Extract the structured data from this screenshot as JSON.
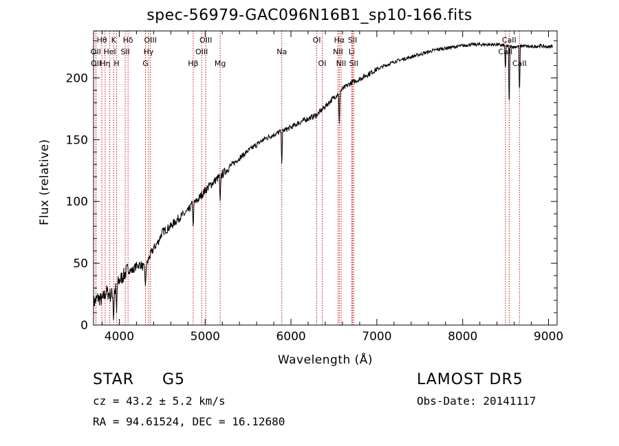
{
  "chart_data": {
    "type": "line",
    "title": "spec-56979-GAC096N16B1_sp10-166.fits",
    "xlabel": "Wavelength (Å)",
    "ylabel": "Flux (relative)",
    "xlim": [
      3700,
      9100
    ],
    "ylim": [
      0,
      238
    ],
    "x_ticks": [
      4000,
      5000,
      6000,
      7000,
      8000,
      9000
    ],
    "y_ticks": [
      0,
      50,
      100,
      150,
      200
    ],
    "grid": false,
    "line_color": "#000000",
    "marker_color": "#cc0000",
    "spectrum": {
      "x": [
        3700,
        3750,
        3800,
        3850,
        3900,
        3950,
        4000,
        4050,
        4100,
        4150,
        4200,
        4250,
        4300,
        4350,
        4400,
        4450,
        4500,
        4600,
        4700,
        4800,
        4850,
        4900,
        5000,
        5100,
        5200,
        5300,
        5400,
        5500,
        5600,
        5700,
        5800,
        5900,
        6000,
        6100,
        6200,
        6300,
        6400,
        6500,
        6600,
        6700,
        6800,
        6900,
        7000,
        7100,
        7200,
        7300,
        7400,
        7500,
        7600,
        7700,
        7800,
        7900,
        8000,
        8100,
        8200,
        8300,
        8400,
        8500,
        8600,
        8700,
        8800,
        8900,
        9000,
        9050
      ],
      "y": [
        18,
        22,
        20,
        27,
        24,
        28,
        36,
        40,
        45,
        44,
        48,
        49,
        45,
        55,
        62,
        67,
        75,
        80,
        87,
        92,
        98,
        100,
        109,
        116,
        122,
        129,
        135,
        141,
        146,
        151,
        154,
        157,
        160,
        164,
        167,
        170,
        177,
        184,
        191,
        196,
        199,
        203,
        207,
        210,
        213,
        215,
        217,
        219,
        221,
        223,
        224,
        225,
        226,
        227,
        227,
        227,
        227,
        226,
        225,
        226,
        225,
        226,
        225,
        226
      ]
    },
    "absorption_dips": [
      {
        "x": 3933,
        "y": 2
      },
      {
        "x": 3968,
        "y": 10
      },
      {
        "x": 4305,
        "y": 30
      },
      {
        "x": 4861,
        "y": 78
      },
      {
        "x": 5175,
        "y": 98
      },
      {
        "x": 5893,
        "y": 128
      },
      {
        "x": 6563,
        "y": 160
      },
      {
        "x": 8498,
        "y": 205
      },
      {
        "x": 8542,
        "y": 172
      },
      {
        "x": 8662,
        "y": 184
      }
    ],
    "lines": [
      {
        "label": "Hθ",
        "x": 3797,
        "row": 0
      },
      {
        "label": "OII",
        "x": 3727,
        "row": 1
      },
      {
        "label": "OII",
        "x": 3729,
        "row": 2
      },
      {
        "label": "Hη",
        "x": 3835,
        "row": 2
      },
      {
        "label": "K",
        "x": 3934,
        "row": 0
      },
      {
        "label": "HeI",
        "x": 3889,
        "row": 1
      },
      {
        "label": "H",
        "x": 3969,
        "row": 2
      },
      {
        "label": "Hδ",
        "x": 4102,
        "row": 0
      },
      {
        "label": "SII",
        "x": 4069,
        "row": 1
      },
      {
        "label": "OIII",
        "x": 4363,
        "row": 0
      },
      {
        "label": "Hγ",
        "x": 4341,
        "row": 1
      },
      {
        "label": "G",
        "x": 4305,
        "row": 2
      },
      {
        "label": "Hβ",
        "x": 4861,
        "row": 2
      },
      {
        "label": "OIII",
        "x": 5007,
        "row": 0
      },
      {
        "label": "OIII",
        "x": 4959,
        "row": 1
      },
      {
        "label": "Mg",
        "x": 5175,
        "row": 2
      },
      {
        "label": "Na",
        "x": 5893,
        "row": 1
      },
      {
        "label": "OI",
        "x": 6300,
        "row": 0
      },
      {
        "label": "OI",
        "x": 6364,
        "row": 2
      },
      {
        "label": "Hα",
        "x": 6563,
        "row": 0
      },
      {
        "label": "NII",
        "x": 6548,
        "row": 1
      },
      {
        "label": "NII",
        "x": 6584,
        "row": 2
      },
      {
        "label": "SII",
        "x": 6717,
        "row": 0
      },
      {
        "label": "Li",
        "x": 6708,
        "row": 1
      },
      {
        "label": "SII",
        "x": 6731,
        "row": 2
      },
      {
        "label": "CaII",
        "x": 8542,
        "row": 0
      },
      {
        "label": "CaII",
        "x": 8498,
        "row": 1
      },
      {
        "label": "CaII",
        "x": 8662,
        "row": 2
      }
    ]
  },
  "info": {
    "class_label": "STAR",
    "subclass": "G5",
    "survey": "LAMOST  DR5",
    "cz": "cz = 43.2 ± 5.2 km/s",
    "obs_date": "Obs-Date: 20141117",
    "coords": "RA =  94.61524, DEC =  16.12680"
  }
}
